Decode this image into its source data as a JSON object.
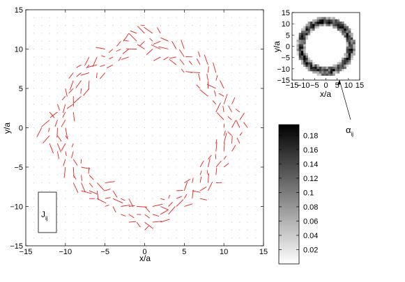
{
  "chart_data": [
    {
      "type": "quiver",
      "xlabel": "x/a",
      "ylabel": "y/a",
      "xlim": [
        -15,
        15
      ],
      "ylim": [
        -15,
        15
      ],
      "xticks": [
        -15,
        -10,
        -5,
        0,
        5,
        10,
        15
      ],
      "yticks": [
        -15,
        -10,
        -5,
        0,
        5,
        10,
        15
      ],
      "grid": false,
      "lattice_step": 1,
      "ring": {
        "center": [
          0,
          0
        ],
        "half_width": 11,
        "corner": 6,
        "band": 1.7
      },
      "arrow_color": "#e8201c",
      "dot_color": "#c8c8c8",
      "legend": {
        "label": "J",
        "subscript": "ij",
        "placement": "bottom-left"
      }
    },
    {
      "type": "heatmap",
      "xlabel": "x/a",
      "ylabel": "y/a",
      "xlim": [
        -15,
        15
      ],
      "ylim": [
        -15,
        15
      ],
      "xticks": [
        -15,
        -10,
        -5,
        0,
        5,
        10,
        15
      ],
      "yticks": [
        -15,
        -10,
        -5,
        0,
        5,
        10,
        15
      ],
      "ring": {
        "center": [
          0,
          0
        ],
        "radius": 11,
        "width": 2
      },
      "annotation": {
        "label": "α",
        "subscript": "ij"
      }
    },
    {
      "type": "colorbar",
      "min": 0,
      "max": 0.195,
      "ticks": [
        0.02,
        0.04,
        0.06,
        0.08,
        0.1,
        0.12,
        0.14,
        0.16,
        0.18
      ],
      "colormap": [
        "#ffffff",
        "#000000"
      ]
    }
  ]
}
